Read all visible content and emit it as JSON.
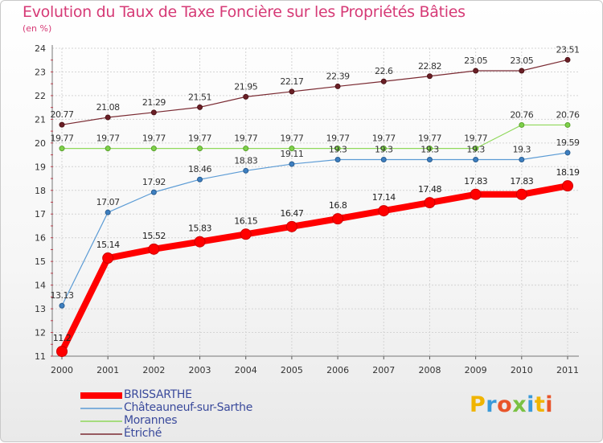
{
  "title": "Evolution du Taux de Taxe Foncière sur les Propriétés Bâties",
  "unit_label": "(en %)",
  "logo_text": "Proxiti",
  "chart_data": {
    "type": "line",
    "title": "Evolution du Taux de Taxe Foncière sur les Propriétés Bâties",
    "ylabel": "(en %)",
    "xlabel": "",
    "x": [
      "2000",
      "2001",
      "2002",
      "2003",
      "2004",
      "2005",
      "2006",
      "2007",
      "2008",
      "2009",
      "2010",
      "2011"
    ],
    "ylim": [
      11,
      24
    ],
    "yticks": [
      11,
      12,
      13,
      14,
      15,
      16,
      17,
      18,
      19,
      20,
      21,
      22,
      23,
      24
    ],
    "grid": true,
    "legend_position": "bottom-left",
    "series": [
      {
        "name": "BRISSARTHE",
        "color": "#ff0000",
        "values": [
          11.2,
          15.14,
          15.52,
          15.83,
          16.15,
          16.47,
          16.8,
          17.14,
          17.48,
          17.83,
          17.83,
          18.19
        ],
        "labels": [
          "11.2",
          "15.14",
          "15.52",
          "15.83",
          "16.15",
          "16.47",
          "16.8",
          "17.14",
          "17.48",
          "17.83",
          "17.83",
          "18.19"
        ]
      },
      {
        "name": "Châteauneuf-sur-Sarthe",
        "color": "#5b9bd5",
        "values": [
          13.13,
          17.07,
          17.92,
          18.46,
          18.83,
          19.11,
          19.3,
          19.3,
          19.3,
          19.3,
          19.3,
          19.59
        ],
        "labels": [
          "13.13",
          "17.07",
          "17.92",
          "18.46",
          "18.83",
          "19.11",
          "19.3",
          "19.3",
          "19.3",
          "19.3",
          "19.3",
          "19.59"
        ]
      },
      {
        "name": "Morannes",
        "color": "#8fd85a",
        "values": [
          19.77,
          19.77,
          19.77,
          19.77,
          19.77,
          19.77,
          19.77,
          19.77,
          19.77,
          19.77,
          20.76,
          20.76
        ],
        "labels": [
          "19.77",
          "19.77",
          "19.77",
          "19.77",
          "19.77",
          "19.77",
          "19.77",
          "19.77",
          "19.77",
          "19.77",
          "20.76",
          "20.76"
        ]
      },
      {
        "name": "Étriché",
        "color": "#7a2a32",
        "values": [
          20.77,
          21.08,
          21.29,
          21.51,
          21.95,
          22.17,
          22.39,
          22.6,
          22.82,
          23.05,
          23.05,
          23.51
        ],
        "labels": [
          "20.77",
          "21.08",
          "21.29",
          "21.51",
          "21.95",
          "22.17",
          "22.39",
          "22.6",
          "22.82",
          "23.05",
          "23.05",
          "23.51"
        ]
      }
    ]
  }
}
